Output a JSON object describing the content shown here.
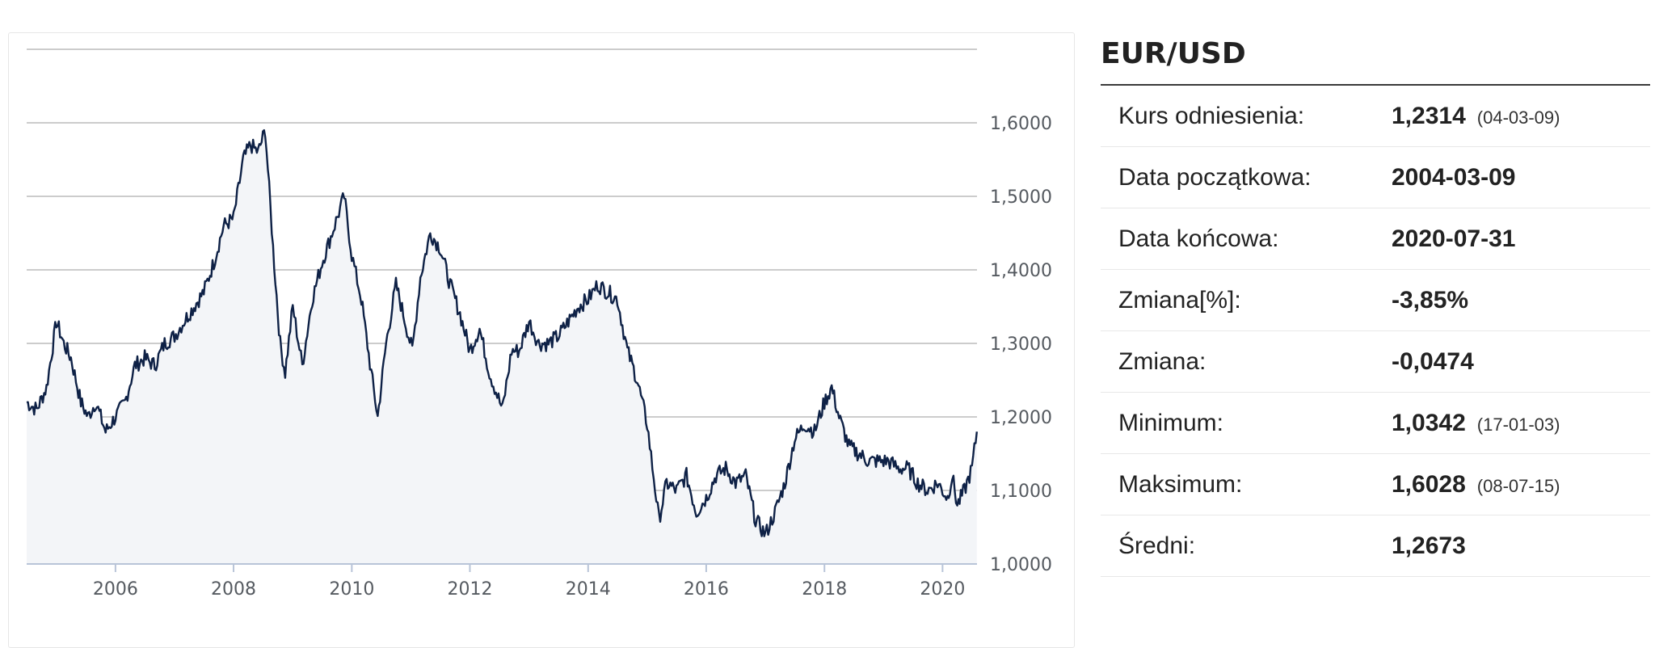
{
  "info": {
    "title": "EUR/USD",
    "rows": [
      {
        "label": "Kurs odniesienia:",
        "value": "1,2314",
        "note": "(04-03-09)"
      },
      {
        "label": "Data początkowa:",
        "value": "2004-03-09",
        "note": ""
      },
      {
        "label": "Data końcowa:",
        "value": "2020-07-31",
        "note": ""
      },
      {
        "label": "Zmiana[%]:",
        "value": "-3,85%",
        "note": ""
      },
      {
        "label": "Zmiana:",
        "value": "-0,0474",
        "note": ""
      },
      {
        "label": "Minimum:",
        "value": "1,0342",
        "note": "(17-01-03)"
      },
      {
        "label": "Maksimum:",
        "value": "1,6028",
        "note": "(08-07-15)"
      },
      {
        "label": "Średni:",
        "value": "1,2673",
        "note": ""
      }
    ]
  },
  "chart_data": {
    "type": "area",
    "title": "",
    "xlabel": "",
    "ylabel": "",
    "x_ticks": [
      "2006",
      "2008",
      "2010",
      "2012",
      "2014",
      "2016",
      "2018",
      "2020"
    ],
    "y_ticks": [
      "1,0000",
      "1,1000",
      "1,2000",
      "1,3000",
      "1,4000",
      "1,5000",
      "1,6000"
    ],
    "xlim": [
      "2004-07-01",
      "2020-08-01"
    ],
    "ylim": [
      1.0,
      1.7
    ],
    "grid": true,
    "colors": {
      "line": "#0e2146",
      "fill": "#f3f5f8",
      "grid": "#cccccc"
    },
    "series": [
      {
        "x": [
          "2004-07-01",
          "2004-09-01",
          "2004-11-01",
          "2005-01-01",
          "2005-02-15",
          "2005-04-01",
          "2005-06-01",
          "2005-07-15",
          "2005-09-01",
          "2005-11-01",
          "2006-01-01",
          "2006-03-01",
          "2006-05-01",
          "2006-07-01",
          "2006-09-01",
          "2006-11-01",
          "2007-01-01",
          "2007-03-01",
          "2007-05-01",
          "2007-07-01",
          "2007-09-01",
          "2007-11-01",
          "2008-01-01",
          "2008-03-01",
          "2008-04-15",
          "2008-06-01",
          "2008-07-15",
          "2008-09-01",
          "2008-10-15",
          "2008-11-15",
          "2009-01-01",
          "2009-03-01",
          "2009-05-01",
          "2009-07-01",
          "2009-09-01",
          "2009-11-15",
          "2010-01-01",
          "2010-03-01",
          "2010-05-01",
          "2010-06-10",
          "2010-08-01",
          "2010-10-01",
          "2010-11-15",
          "2011-01-10",
          "2011-03-01",
          "2011-05-01",
          "2011-07-01",
          "2011-09-01",
          "2011-11-01",
          "2012-01-01",
          "2012-03-01",
          "2012-05-01",
          "2012-07-20",
          "2012-09-15",
          "2012-11-01",
          "2013-01-01",
          "2013-03-01",
          "2013-05-01",
          "2013-07-01",
          "2013-09-01",
          "2013-11-01",
          "2014-01-01",
          "2014-03-01",
          "2014-05-01",
          "2014-07-01",
          "2014-09-01",
          "2014-11-01",
          "2015-01-01",
          "2015-03-15",
          "2015-05-01",
          "2015-07-01",
          "2015-09-01",
          "2015-11-01",
          "2016-01-01",
          "2016-03-01",
          "2016-05-01",
          "2016-07-01",
          "2016-09-01",
          "2016-11-01",
          "2017-01-01",
          "2017-03-01",
          "2017-05-01",
          "2017-07-01",
          "2017-09-01",
          "2017-11-01",
          "2018-01-01",
          "2018-02-15",
          "2018-04-01",
          "2018-06-01",
          "2018-08-01",
          "2018-10-01",
          "2018-12-01",
          "2019-02-01",
          "2019-04-01",
          "2019-06-01",
          "2019-08-01",
          "2019-10-01",
          "2019-12-01",
          "2020-02-01",
          "2020-03-01",
          "2020-04-01",
          "2020-05-15",
          "2020-07-01",
          "2020-07-31"
        ],
        "values": [
          1.22,
          1.21,
          1.24,
          1.33,
          1.3,
          1.28,
          1.22,
          1.2,
          1.22,
          1.18,
          1.2,
          1.22,
          1.27,
          1.28,
          1.27,
          1.3,
          1.31,
          1.33,
          1.35,
          1.37,
          1.41,
          1.46,
          1.47,
          1.55,
          1.57,
          1.56,
          1.59,
          1.43,
          1.3,
          1.26,
          1.35,
          1.27,
          1.36,
          1.41,
          1.45,
          1.5,
          1.42,
          1.36,
          1.26,
          1.2,
          1.3,
          1.38,
          1.34,
          1.29,
          1.39,
          1.45,
          1.43,
          1.38,
          1.34,
          1.29,
          1.32,
          1.26,
          1.21,
          1.29,
          1.29,
          1.33,
          1.3,
          1.3,
          1.31,
          1.33,
          1.35,
          1.36,
          1.38,
          1.37,
          1.36,
          1.29,
          1.25,
          1.19,
          1.06,
          1.11,
          1.1,
          1.12,
          1.07,
          1.09,
          1.12,
          1.13,
          1.11,
          1.12,
          1.06,
          1.04,
          1.07,
          1.11,
          1.17,
          1.19,
          1.18,
          1.22,
          1.24,
          1.2,
          1.16,
          1.15,
          1.14,
          1.14,
          1.14,
          1.13,
          1.13,
          1.11,
          1.1,
          1.11,
          1.09,
          1.12,
          1.08,
          1.1,
          1.13,
          1.18
        ]
      }
    ]
  }
}
